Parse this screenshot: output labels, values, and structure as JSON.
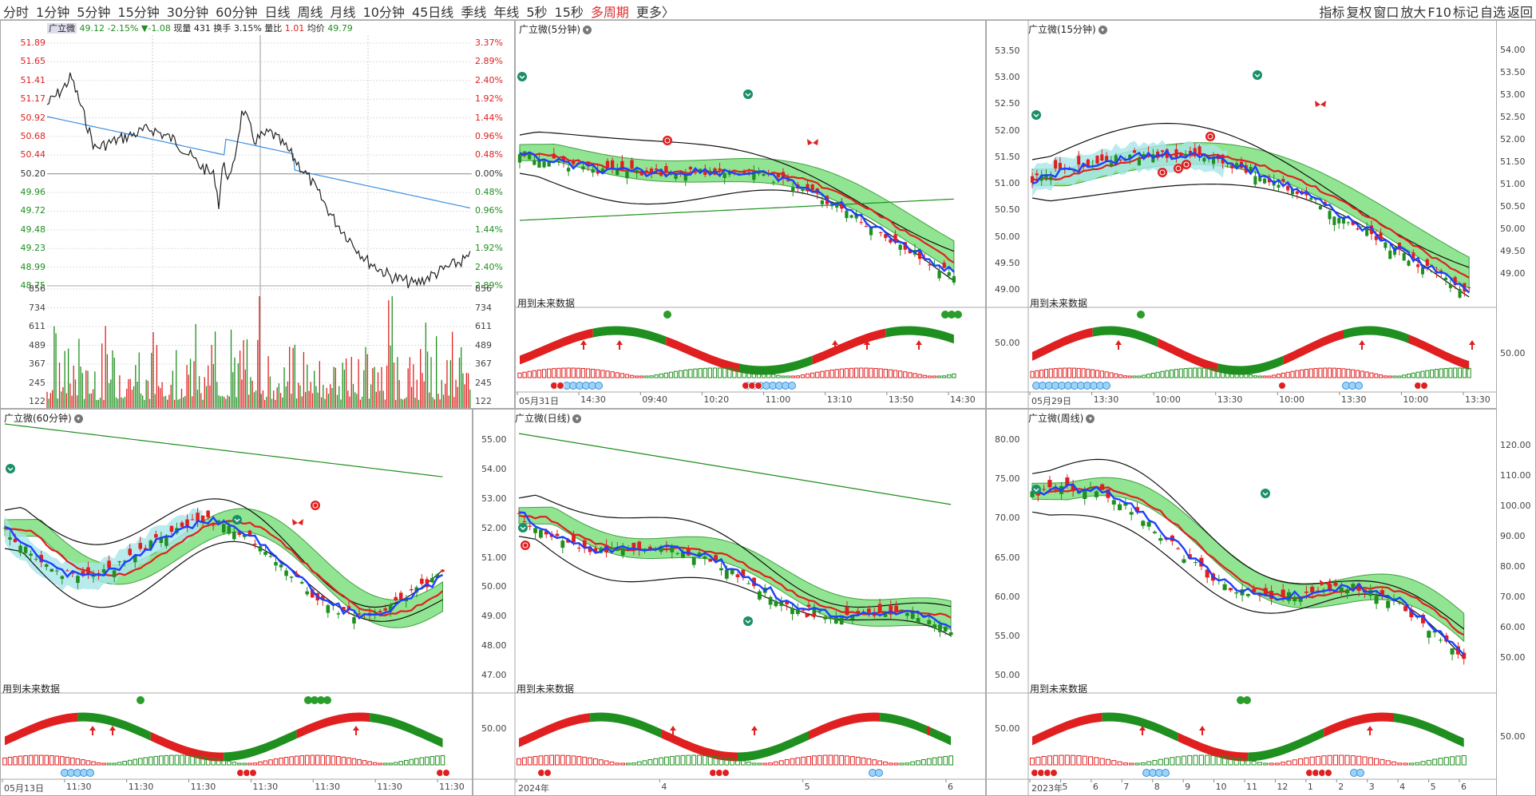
{
  "toolbar": {
    "periods": [
      "分时",
      "1分钟",
      "5分钟",
      "15分钟",
      "30分钟",
      "60分钟",
      "日线",
      "周线",
      "月线",
      "10分钟",
      "45日线",
      "季线",
      "年线",
      "5秒",
      "15秒",
      "多周期",
      "更多〉"
    ],
    "right": [
      "指标",
      "复权",
      "窗口",
      "放大",
      "F10",
      "标记",
      "自选",
      "返回"
    ]
  },
  "intraday": {
    "stock": "广立微",
    "price": "49.12",
    "pct": "-2.15%",
    "change": "▼-1.08",
    "vol_label": "现量",
    "vol": "431",
    "turnover_label": "换手",
    "turnover": "3.15%",
    "ratio_label": "量比",
    "ratio": "1.01",
    "avg_label": "均价",
    "avg": "49.79",
    "price_ticks": [
      "51.89",
      "51.65",
      "51.41",
      "51.17",
      "50.92",
      "50.68",
      "50.44",
      "50.20",
      "49.96",
      "49.72",
      "49.48",
      "49.23",
      "48.99",
      "48.75"
    ],
    "pct_ticks": [
      "3.37%",
      "2.89%",
      "2.40%",
      "1.92%",
      "1.44%",
      "0.96%",
      "0.48%",
      "0.00%",
      "0.48%",
      "0.96%",
      "1.44%",
      "1.92%",
      "2.40%",
      "2.89%"
    ],
    "vol_ticks": [
      "856",
      "734",
      "611",
      "489",
      "367",
      "245",
      "122"
    ]
  },
  "panels": {
    "p5": {
      "title": "广立微(5分钟)",
      "future": "用到未来数据",
      "yticks": [],
      "xticks": [
        "05月31日",
        "14:30",
        "09:40",
        "10:20",
        "11:00",
        "13:10",
        "13:50",
        "14:30"
      ]
    },
    "p15": {
      "title": "广立微(15分钟)",
      "future": "用到未来数据",
      "yticks": [
        "53.50",
        "53.00",
        "52.50",
        "52.00",
        "51.50",
        "51.00",
        "50.50",
        "50.00",
        "49.50",
        "49.00"
      ],
      "sub_tick": "50.00",
      "xticks": [
        "05月29日",
        "13:30",
        "10:00",
        "13:30",
        "10:00",
        "13:30",
        "10:00",
        "13:30"
      ]
    },
    "p60": {
      "title": "广立微(60分钟)",
      "future": "用到未来数据",
      "yticks": [],
      "xticks": [
        "05月13日",
        "11:30",
        "11:30",
        "11:30",
        "11:30",
        "11:30",
        "11:30",
        "11:30"
      ]
    },
    "pday": {
      "title": "广立微(日线)",
      "future": "用到未来数据",
      "yticks": [
        "55.00",
        "54.00",
        "53.00",
        "52.00",
        "51.00",
        "50.00",
        "49.00",
        "48.00",
        "47.00"
      ],
      "sub_tick": "50.00",
      "xticks": [
        "2024年",
        "4",
        "5",
        "6"
      ]
    },
    "pweek": {
      "title": "广立微(周线)",
      "future": "用到未来数据",
      "yticks": [
        "80.00",
        "75.00",
        "70.00",
        "65.00",
        "60.00",
        "55.00",
        "50.00"
      ],
      "sub_tick": "50.00",
      "xticks": [
        "2023年",
        "5",
        "6",
        "7",
        "8",
        "9",
        "10",
        "11",
        "12",
        "1",
        "2",
        "3",
        "4",
        "5",
        "6"
      ]
    }
  },
  "right_axis": {
    "top": [
      "54.00",
      "53.50",
      "53.00",
      "52.50",
      "52.00",
      "51.50",
      "51.00",
      "50.50",
      "50.00",
      "49.50",
      "49.00"
    ],
    "top_sub": "50.00",
    "bottom": [
      "120.00",
      "110.00",
      "100.00",
      "90.00",
      "80.00",
      "70.00",
      "60.00",
      "50.00"
    ],
    "bottom_sub": "50.00"
  },
  "colors": {
    "up": "#e02020",
    "down": "#1f8f1f",
    "ma": "#1e40ff",
    "band": "#7ee07e",
    "cyan": "#a8e6ea"
  }
}
